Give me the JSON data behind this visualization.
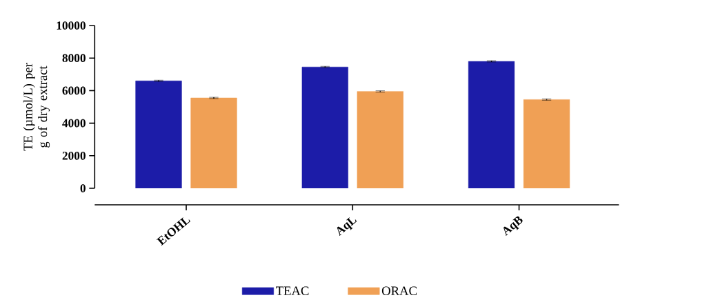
{
  "chart_data": {
    "type": "bar",
    "ylabel": "TE (µmol/L) per g of dry extract",
    "categories": [
      "EtOHL",
      "AqL",
      "AqB"
    ],
    "series": [
      {
        "name": "TEAC",
        "color": "#1c1ca8",
        "values": [
          6600,
          7450,
          7800
        ],
        "errors": [
          40,
          40,
          40
        ]
      },
      {
        "name": "ORAC",
        "color": "#f0a055",
        "values": [
          5550,
          5950,
          5450
        ],
        "errors": [
          40,
          40,
          40
        ]
      }
    ],
    "ylim": [
      0,
      10000
    ],
    "yticks": [
      0,
      2000,
      4000,
      6000,
      8000,
      10000
    ],
    "legend": "bottom",
    "grid": false
  }
}
